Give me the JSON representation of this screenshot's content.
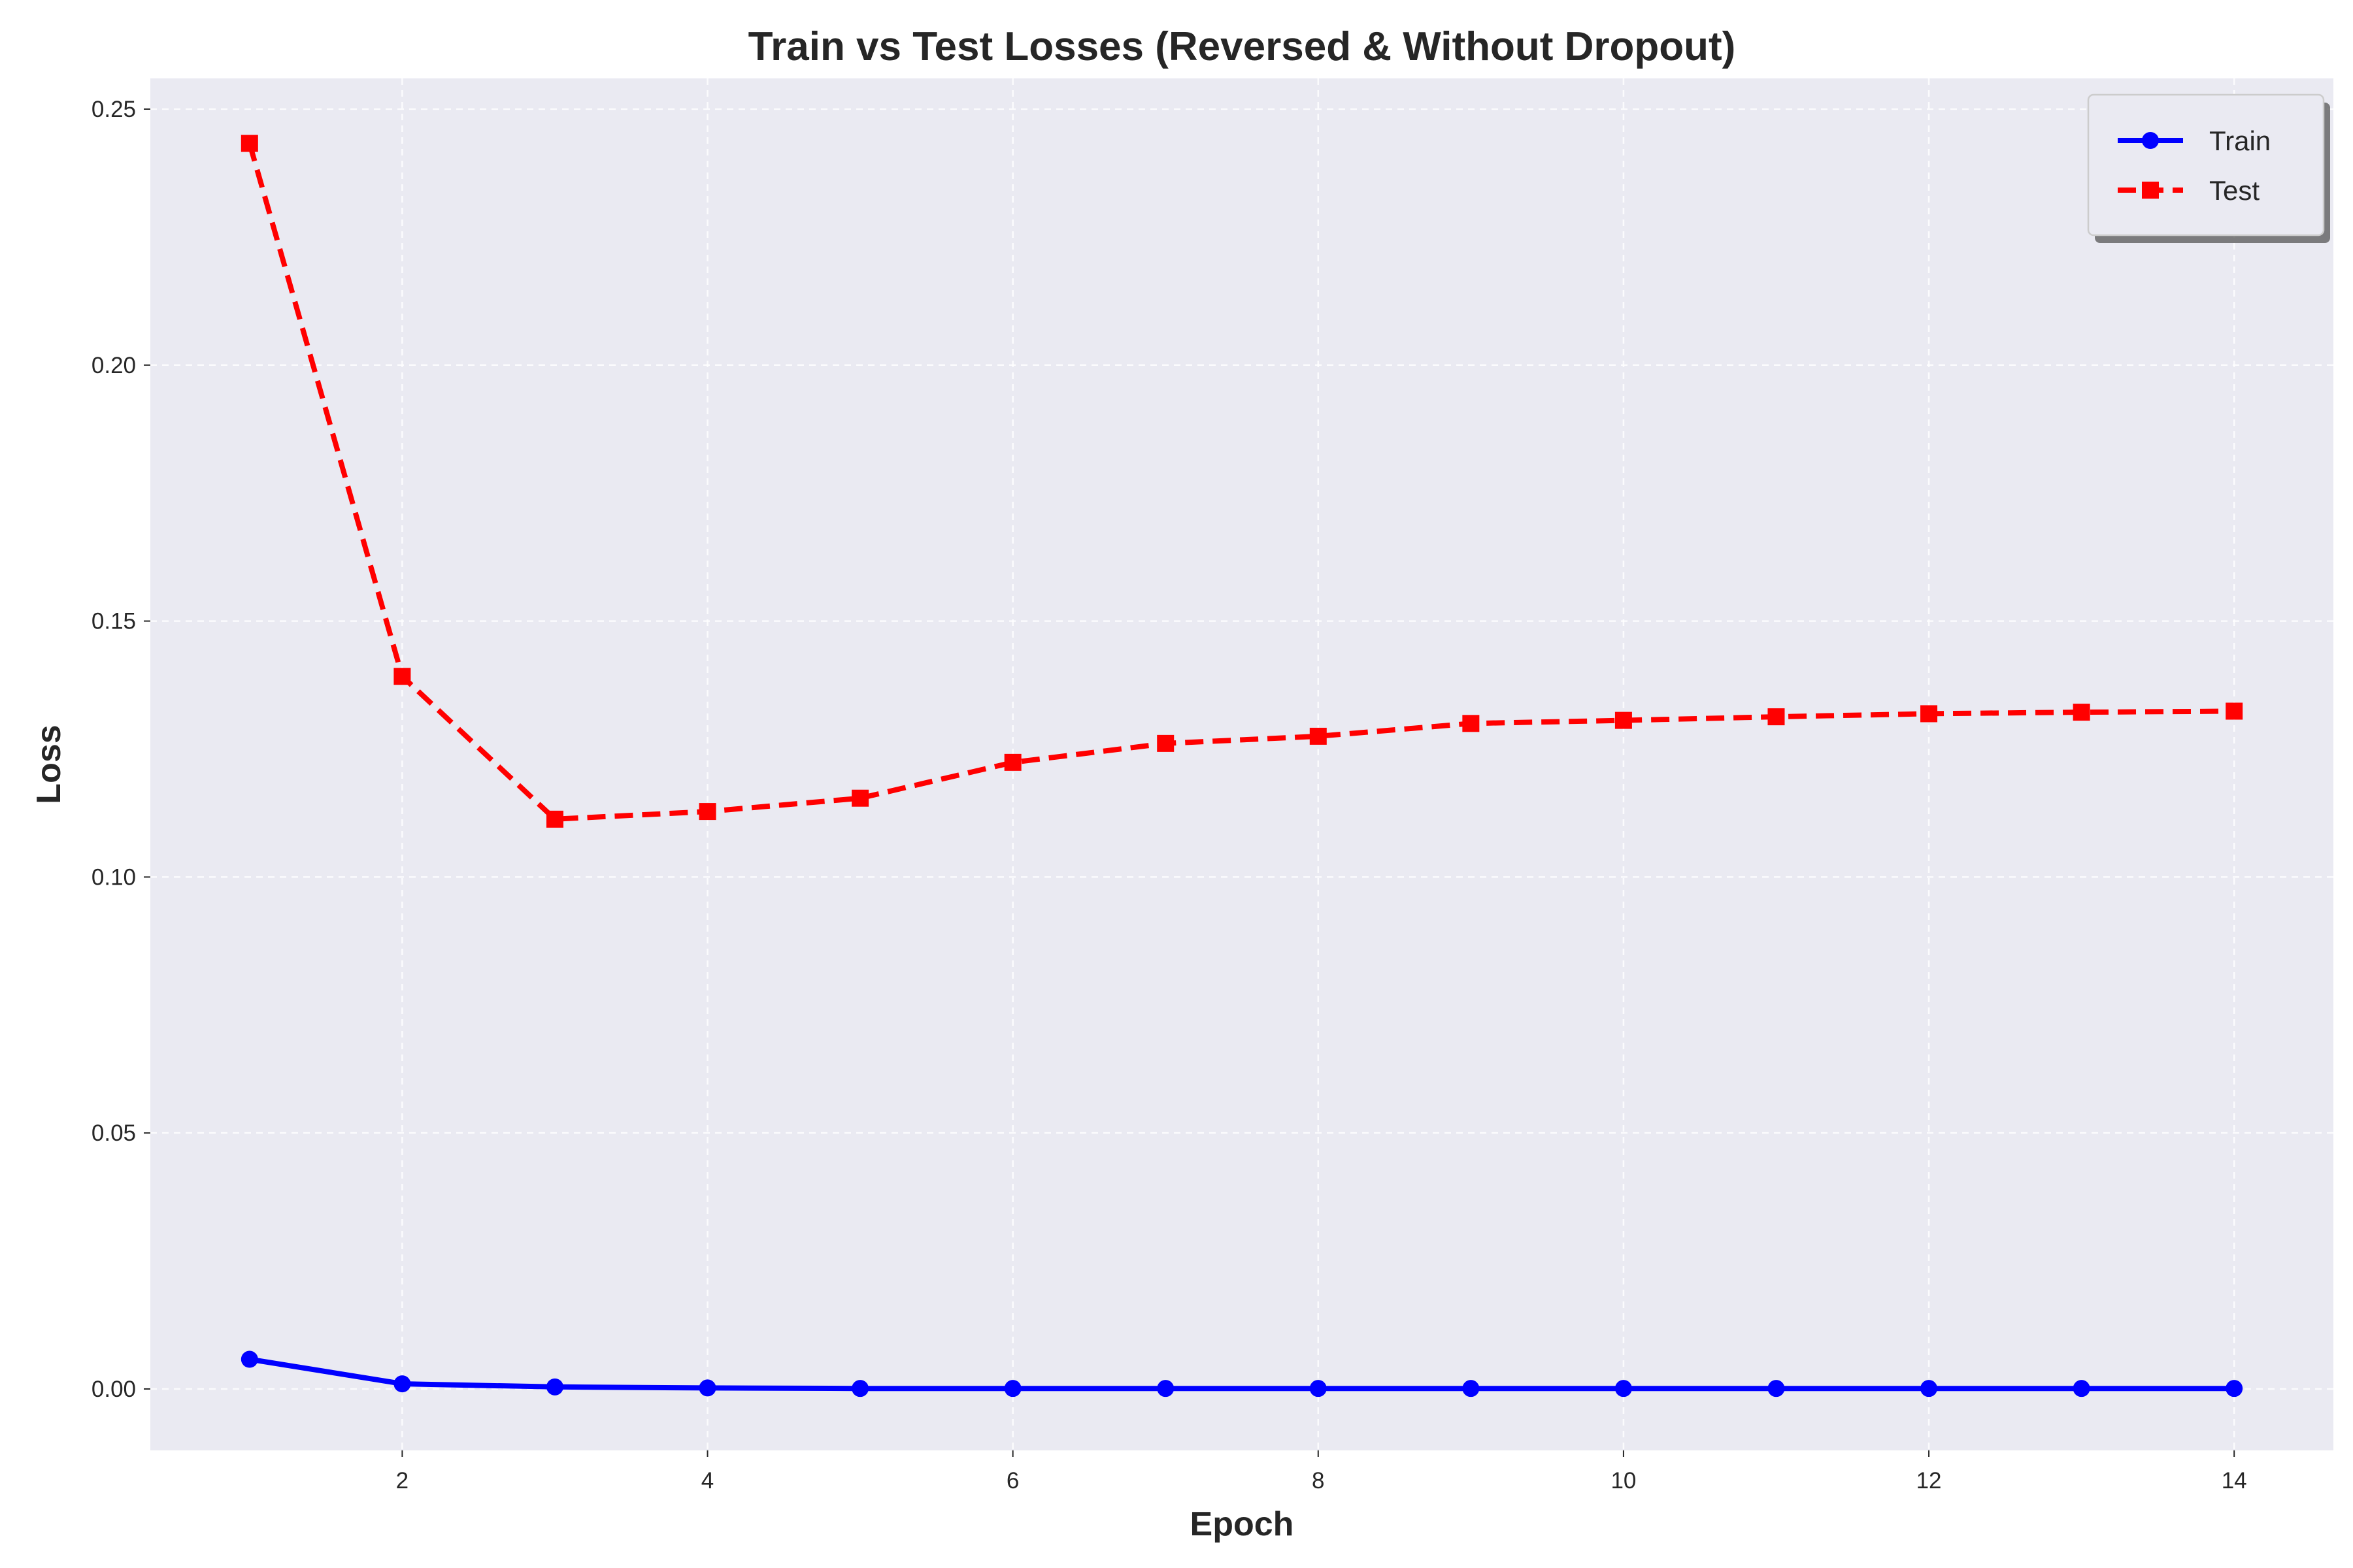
{
  "chart_data": {
    "type": "line",
    "title": "Train vs Test Losses (Reversed & Without Dropout)",
    "xlabel": "Epoch",
    "ylabel": "Loss",
    "x": [
      1,
      2,
      3,
      4,
      5,
      6,
      7,
      8,
      9,
      10,
      11,
      12,
      13,
      14
    ],
    "xlim": [
      0.35,
      14.65
    ],
    "ylim": [
      -0.012,
      0.256
    ],
    "xticks": [
      2,
      4,
      6,
      8,
      10,
      12,
      14
    ],
    "xtick_labels": [
      "2",
      "4",
      "6",
      "8",
      "10",
      "12",
      "14"
    ],
    "yticks": [
      0.0,
      0.05,
      0.1,
      0.15,
      0.2,
      0.25
    ],
    "ytick_labels": [
      "0.00",
      "0.05",
      "0.10",
      "0.15",
      "0.20",
      "0.25"
    ],
    "grid": true,
    "legend_position": "top-right",
    "series": [
      {
        "name": "Train",
        "color": "#0000ff",
        "line_style": "solid",
        "marker": "circle",
        "values": [
          0.0058,
          0.001,
          0.0004,
          0.0002,
          0.0001,
          0.0001,
          0.0001,
          0.0001,
          0.0001,
          0.0001,
          0.0001,
          0.0001,
          0.0001,
          0.0001
        ]
      },
      {
        "name": "Test",
        "color": "#ff0000",
        "line_style": "dashed",
        "marker": "square",
        "values": [
          0.2433,
          0.1392,
          0.1113,
          0.1128,
          0.1154,
          0.1224,
          0.1261,
          0.1275,
          0.13,
          0.1306,
          0.1313,
          0.1319,
          0.1322,
          0.1324
        ]
      }
    ]
  }
}
